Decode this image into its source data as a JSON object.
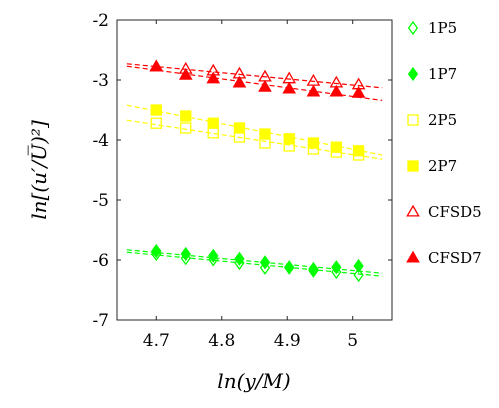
{
  "chart_data": {
    "type": "scatter",
    "xlabel": "ln(y/M)",
    "ylabel": "ln[(u′/U̅)²]",
    "xlim": [
      4.64,
      5.06
    ],
    "ylim": [
      -7,
      -2
    ],
    "xticks": [
      4.7,
      4.8,
      4.9,
      5
    ],
    "xtick_labels": [
      "4.7",
      "4.8",
      "4.9",
      "5"
    ],
    "yticks": [
      -7,
      -6,
      -5,
      -4,
      -3,
      -2
    ],
    "ytick_labels": [
      "-7",
      "-6",
      "-5",
      "-4",
      "-3",
      "-2"
    ],
    "grid": false,
    "legend_position": "outside-right",
    "x": [
      4.7,
      4.745,
      4.787,
      4.827,
      4.866,
      4.903,
      4.94,
      4.975,
      5.009
    ],
    "series": [
      {
        "name": "1P5",
        "marker": "diamond-open",
        "color": "#00ff00",
        "values": [
          -5.9,
          -5.97,
          -5.99,
          -6.05,
          -6.13,
          -6.13,
          -6.18,
          -6.2,
          -6.25
        ],
        "fit": {
          "x": [
            4.655,
            5.045
          ],
          "y": [
            -5.87,
            -6.27
          ]
        }
      },
      {
        "name": "1P7",
        "marker": "diamond-filled",
        "color": "#00ff00",
        "values": [
          -5.85,
          -5.9,
          -5.93,
          -5.98,
          -6.04,
          -6.12,
          -6.15,
          -6.12,
          -6.1
        ],
        "fit": {
          "x": [
            4.655,
            5.045
          ],
          "y": [
            -5.83,
            -6.22
          ]
        }
      },
      {
        "name": "2P5",
        "marker": "square-open",
        "color": "#ffff00",
        "values": [
          -3.72,
          -3.8,
          -3.88,
          -3.95,
          -4.05,
          -4.1,
          -4.15,
          -4.2,
          -4.25
        ],
        "fit": {
          "x": [
            4.655,
            5.045
          ],
          "y": [
            -3.67,
            -4.32
          ]
        }
      },
      {
        "name": "2P7",
        "marker": "square-filled",
        "color": "#ffff00",
        "values": [
          -3.5,
          -3.6,
          -3.72,
          -3.8,
          -3.9,
          -3.98,
          -4.05,
          -4.12,
          -4.18
        ],
        "fit": {
          "x": [
            4.655,
            5.045
          ],
          "y": [
            -3.42,
            -4.25
          ]
        }
      },
      {
        "name": "CFSD5",
        "marker": "triangle-open",
        "color": "#ff0000",
        "values": [
          -2.78,
          -2.82,
          -2.85,
          -2.9,
          -2.95,
          -2.98,
          -3.02,
          -3.05,
          -3.08
        ],
        "fit": {
          "x": [
            4.655,
            5.045
          ],
          "y": [
            -2.73,
            -3.13
          ]
        }
      },
      {
        "name": "CFSD7",
        "marker": "triangle-filled",
        "color": "#ff0000",
        "values": [
          -2.78,
          -2.92,
          -2.98,
          -3.05,
          -3.12,
          -3.15,
          -3.2,
          -3.2,
          -3.22
        ],
        "fit": {
          "x": [
            4.655,
            5.045
          ],
          "y": [
            -2.77,
            -3.34
          ]
        }
      }
    ]
  }
}
